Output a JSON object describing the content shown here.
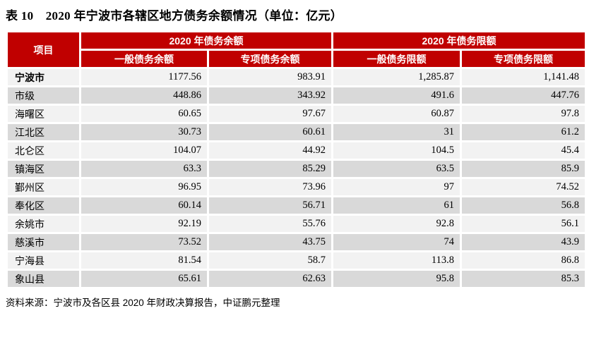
{
  "title": "表 10　2020 年宁波市各辖区地方债务余额情况（单位：亿元）",
  "colors": {
    "header_bg": "#C00000",
    "header_text": "#FFFFFF",
    "row_odd_bg": "#F2F2F2",
    "row_even_bg": "#D9D9D9",
    "grid_gap": "#FFFFFF"
  },
  "table": {
    "corner_header": "项目",
    "groups": [
      {
        "label": "2020 年债务余额",
        "sub": [
          "一般债务余额",
          "专项债务余额"
        ]
      },
      {
        "label": "2020 年债务限额",
        "sub": [
          "一般债务限额",
          "专项债务限额"
        ]
      }
    ],
    "column_keys": [
      "general-balance",
      "special-balance",
      "general-limit",
      "special-limit"
    ],
    "rows": [
      {
        "name": "宁波市",
        "bold": true,
        "values": [
          "1177.56",
          "983.91",
          "1,285.87",
          "1,141.48"
        ]
      },
      {
        "name": "市级",
        "bold": false,
        "values": [
          "448.86",
          "343.92",
          "491.6",
          "447.76"
        ]
      },
      {
        "name": "海曙区",
        "bold": false,
        "values": [
          "60.65",
          "97.67",
          "60.87",
          "97.8"
        ]
      },
      {
        "name": "江北区",
        "bold": false,
        "values": [
          "30.73",
          "60.61",
          "31",
          "61.2"
        ]
      },
      {
        "name": "北仑区",
        "bold": false,
        "values": [
          "104.07",
          "44.92",
          "104.5",
          "45.4"
        ]
      },
      {
        "name": "镇海区",
        "bold": false,
        "values": [
          "63.3",
          "85.29",
          "63.5",
          "85.9"
        ]
      },
      {
        "name": "鄞州区",
        "bold": false,
        "values": [
          "96.95",
          "73.96",
          "97",
          "74.52"
        ]
      },
      {
        "name": "奉化区",
        "bold": false,
        "values": [
          "60.14",
          "56.71",
          "61",
          "56.8"
        ]
      },
      {
        "name": "余姚市",
        "bold": false,
        "values": [
          "92.19",
          "55.76",
          "92.8",
          "56.1"
        ]
      },
      {
        "name": "慈溪市",
        "bold": false,
        "values": [
          "73.52",
          "43.75",
          "74",
          "43.9"
        ]
      },
      {
        "name": "宁海县",
        "bold": false,
        "values": [
          "81.54",
          "58.7",
          "113.8",
          "86.8"
        ]
      },
      {
        "name": "象山县",
        "bold": false,
        "values": [
          "65.61",
          "62.63",
          "95.8",
          "85.3"
        ]
      }
    ]
  },
  "source_note": "资料来源：宁波市及各区县 2020 年财政决算报告，中证鹏元整理"
}
